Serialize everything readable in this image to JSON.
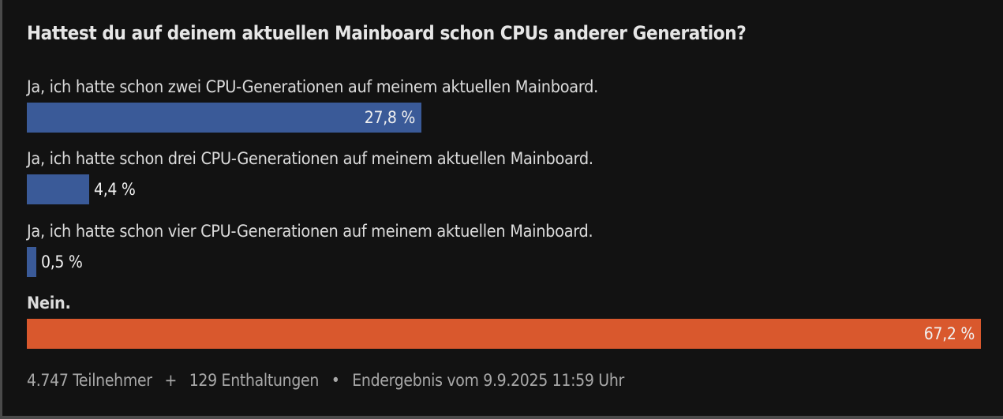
{
  "chart_data": {
    "type": "bar",
    "orientation": "horizontal",
    "title": "Hattest du auf deinem aktuellen Mainboard schon CPUs anderer Generation?",
    "categories": [
      "Ja, ich hatte schon zwei CPU-Generationen auf meinem aktuellen Mainboard.",
      "Ja, ich hatte schon drei CPU-Generationen auf meinem aktuellen Mainboard.",
      "Ja, ich hatte schon vier CPU-Generationen auf meinem aktuellen Mainboard.",
      "Nein."
    ],
    "values": [
      27.8,
      4.4,
      0.5,
      67.2
    ],
    "value_labels": [
      "27,8 %",
      "4,4 %",
      "0,5 %",
      "67,2 %"
    ],
    "colors": [
      "#3a5a98",
      "#3a5a98",
      "#3a5a98",
      "#d9582d"
    ],
    "winner_index": 3,
    "unit": "%"
  },
  "footer": {
    "participants": "4.747 Teilnehmer",
    "plus": "+",
    "abstentions": "129 Enthaltungen",
    "dot": "•",
    "result": "Endergebnis vom 9.9.2025 11:59 Uhr"
  }
}
